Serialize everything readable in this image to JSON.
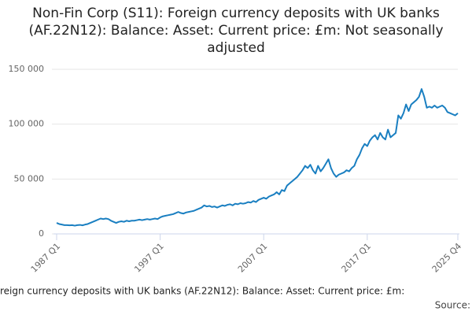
{
  "chart_data": {
    "type": "line",
    "title": "Non-Fin Corp (S11): Foreign currency deposits with UK banks (AF.22N12): Balance: Asset: Current price: £m: Not seasonally adjusted",
    "footer": "reign currency deposits with UK banks (AF.22N12): Balance: Asset: Current price: £m:",
    "source": "Source:",
    "color": "#1a7fc1",
    "grid": true,
    "ylim": [
      0,
      150000
    ],
    "yticks": [
      0,
      {
        "value": 50000,
        "label": "50 000"
      },
      {
        "value": 100000,
        "label": "100 000"
      },
      {
        "value": 150000,
        "label": "150 000"
      }
    ],
    "categories": [
      "1987 Q1",
      null,
      null,
      null,
      null,
      null,
      null,
      null,
      null,
      null,
      null,
      null,
      null,
      null,
      null,
      null,
      null,
      null,
      null,
      null,
      null,
      null,
      null,
      null,
      null,
      null,
      null,
      null,
      null,
      null,
      null,
      null,
      null,
      null,
      null,
      null,
      null,
      null,
      null,
      null,
      "1997 Q1",
      null,
      null,
      null,
      null,
      null,
      null,
      null,
      null,
      null,
      null,
      null,
      null,
      null,
      null,
      null,
      null,
      null,
      null,
      null,
      null,
      null,
      null,
      null,
      null,
      null,
      null,
      null,
      null,
      null,
      null,
      null,
      null,
      null,
      null,
      null,
      null,
      null,
      null,
      null,
      "2007 Q1",
      null,
      null,
      null,
      null,
      null,
      null,
      null,
      null,
      null,
      null,
      null,
      null,
      null,
      null,
      null,
      null,
      null,
      null,
      null,
      null,
      null,
      null,
      null,
      null,
      null,
      null,
      null,
      null,
      null,
      null,
      null,
      null,
      null,
      null,
      null,
      null,
      null,
      null,
      null,
      "2017 Q1",
      null,
      null,
      null,
      null,
      null,
      null,
      null,
      null,
      null,
      null,
      null,
      null,
      null,
      null,
      null,
      null,
      null,
      null,
      null,
      null,
      null,
      null,
      null,
      null,
      null,
      null,
      null,
      null,
      null,
      null,
      null,
      null,
      null,
      null,
      "2025 Q4"
    ],
    "values": [
      10000,
      9000,
      8500,
      8000,
      8000,
      7800,
      8000,
      7500,
      8000,
      8200,
      7800,
      8500,
      9000,
      10000,
      11000,
      12000,
      13000,
      14000,
      13500,
      14000,
      13500,
      12000,
      11000,
      10000,
      11000,
      11500,
      11000,
      12000,
      11500,
      12000,
      12000,
      12500,
      13000,
      12500,
      13000,
      13500,
      13000,
      13500,
      14000,
      13500,
      15000,
      16000,
      16500,
      17000,
      17500,
      18000,
      19000,
      20000,
      19000,
      18500,
      19500,
      20000,
      20500,
      21000,
      22000,
      23000,
      24000,
      26000,
      25000,
      25500,
      24500,
      25000,
      24000,
      25000,
      26000,
      25500,
      26500,
      27000,
      26000,
      27500,
      27000,
      28000,
      27500,
      28000,
      29000,
      28500,
      30000,
      29000,
      31000,
      32000,
      33000,
      32000,
      34000,
      35000,
      36000,
      38000,
      36000,
      40000,
      39000,
      44000,
      46000,
      48000,
      50000,
      52000,
      55000,
      58000,
      62000,
      60000,
      63000,
      58000,
      55000,
      62000,
      57000,
      60000,
      64000,
      68000,
      60000,
      55000,
      52000,
      54000,
      55000,
      56000,
      58000,
      57000,
      60000,
      62000,
      68000,
      72000,
      78000,
      82000,
      80000,
      85000,
      88000,
      90000,
      86000,
      92000,
      88000,
      86000,
      95000,
      88000,
      90000,
      92000,
      108000,
      105000,
      110000,
      118000,
      112000,
      118000,
      120000,
      122000,
      125000,
      132000,
      125000,
      115000,
      116000,
      115000,
      117000,
      115000,
      116000,
      117000,
      115000,
      111000,
      110000,
      109000,
      108000,
      110000
    ]
  }
}
